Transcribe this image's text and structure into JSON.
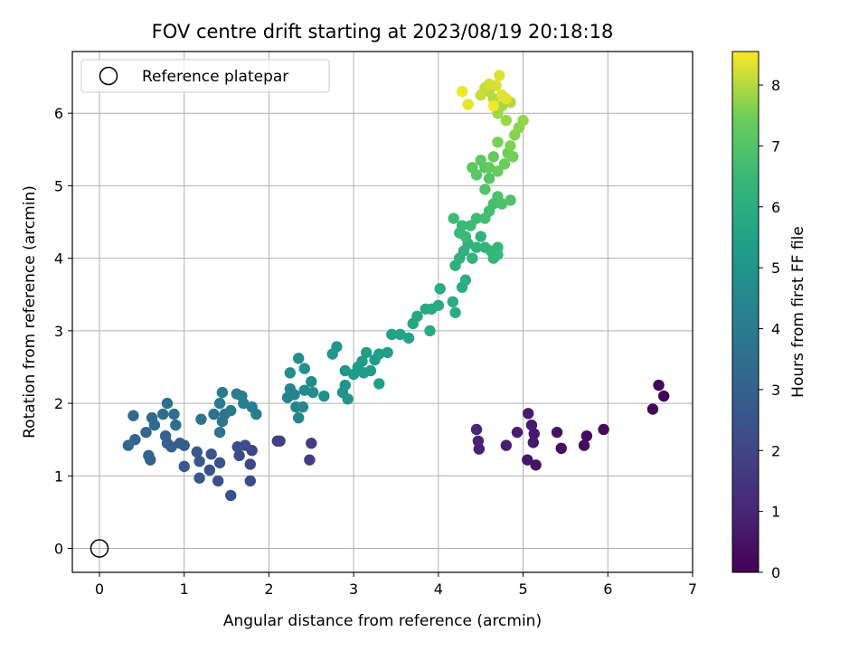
{
  "chart_data": {
    "type": "scatter",
    "title": "FOV centre drift starting at 2023/08/19 20:18:18",
    "xlabel": "Angular distance from reference (arcmin)",
    "ylabel": "Rotation from reference (arcmin)",
    "xlim": [
      -0.32,
      7.0
    ],
    "ylim": [
      -0.33,
      6.85
    ],
    "xticks": [
      0,
      1,
      2,
      3,
      4,
      5,
      6,
      7
    ],
    "yticks": [
      0,
      1,
      2,
      3,
      4,
      5,
      6
    ],
    "grid": true,
    "legend": {
      "label": "Reference platepar",
      "placement": "top-left"
    },
    "reference_point": {
      "x": 0,
      "y": 0
    },
    "colorbar": {
      "label": "Hours from first FF file",
      "range": [
        0,
        8.55
      ],
      "ticks": [
        0,
        1,
        2,
        3,
        4,
        5,
        6,
        7,
        8
      ],
      "colormap": "viridis"
    },
    "points": [
      [
        6.6,
        2.25,
        0.05
      ],
      [
        6.66,
        2.1,
        0.1
      ],
      [
        6.53,
        1.92,
        0.15
      ],
      [
        5.95,
        1.64,
        0.25
      ],
      [
        5.75,
        1.55,
        0.3
      ],
      [
        5.72,
        1.42,
        0.35
      ],
      [
        5.45,
        1.38,
        0.42
      ],
      [
        5.4,
        1.6,
        0.45
      ],
      [
        5.15,
        1.15,
        0.55
      ],
      [
        5.05,
        1.22,
        0.6
      ],
      [
        5.12,
        1.46,
        0.62
      ],
      [
        5.13,
        1.58,
        0.65
      ],
      [
        5.1,
        1.7,
        0.7
      ],
      [
        5.06,
        1.86,
        0.75
      ],
      [
        4.93,
        1.6,
        0.8
      ],
      [
        4.8,
        1.42,
        0.85
      ],
      [
        4.48,
        1.37,
        0.9
      ],
      [
        4.47,
        1.48,
        0.95
      ],
      [
        4.45,
        1.64,
        1.0
      ],
      [
        2.48,
        1.22,
        1.7
      ],
      [
        2.5,
        1.45,
        1.75
      ],
      [
        2.1,
        1.48,
        1.8
      ],
      [
        2.13,
        1.48,
        1.85
      ],
      [
        1.8,
        1.35,
        2.0
      ],
      [
        1.78,
        1.16,
        2.05
      ],
      [
        1.78,
        0.93,
        2.1
      ],
      [
        1.72,
        1.42,
        2.15
      ],
      [
        1.65,
        1.28,
        2.2
      ],
      [
        1.63,
        1.4,
        2.25
      ],
      [
        1.55,
        0.73,
        2.3
      ],
      [
        1.4,
        0.93,
        2.35
      ],
      [
        1.42,
        1.18,
        2.4
      ],
      [
        1.3,
        1.08,
        2.45
      ],
      [
        1.32,
        1.3,
        2.5
      ],
      [
        1.18,
        0.97,
        2.55
      ],
      [
        1.18,
        1.2,
        2.6
      ],
      [
        1.15,
        1.33,
        2.65
      ],
      [
        1.0,
        1.13,
        2.7
      ],
      [
        1.0,
        1.42,
        2.75
      ],
      [
        0.95,
        1.45,
        2.8
      ],
      [
        0.85,
        1.4,
        2.85
      ],
      [
        0.8,
        1.45,
        2.9
      ],
      [
        0.78,
        1.55,
        2.95
      ],
      [
        0.6,
        1.22,
        3.0
      ],
      [
        0.58,
        1.28,
        3.05
      ],
      [
        0.55,
        1.6,
        3.1
      ],
      [
        0.42,
        1.5,
        3.15
      ],
      [
        0.34,
        1.42,
        3.2
      ],
      [
        0.4,
        1.83,
        3.25
      ],
      [
        0.62,
        1.8,
        3.3
      ],
      [
        0.65,
        1.7,
        3.35
      ],
      [
        0.75,
        1.85,
        3.4
      ],
      [
        0.8,
        2.0,
        3.45
      ],
      [
        0.88,
        1.85,
        3.5
      ],
      [
        0.9,
        1.7,
        3.55
      ],
      [
        1.2,
        1.78,
        3.6
      ],
      [
        1.35,
        1.85,
        3.65
      ],
      [
        1.42,
        1.6,
        3.7
      ],
      [
        1.45,
        1.75,
        3.75
      ],
      [
        1.48,
        1.85,
        3.8
      ],
      [
        1.55,
        1.9,
        3.85
      ],
      [
        1.42,
        2.0,
        3.9
      ],
      [
        1.45,
        2.15,
        3.95
      ],
      [
        1.62,
        2.13,
        4.0
      ],
      [
        1.68,
        2.1,
        4.05
      ],
      [
        1.7,
        2.0,
        4.08
      ],
      [
        1.8,
        1.95,
        4.12
      ],
      [
        1.85,
        1.85,
        4.15
      ],
      [
        2.22,
        2.08,
        4.25
      ],
      [
        2.25,
        2.2,
        4.3
      ],
      [
        2.3,
        2.12,
        4.35
      ],
      [
        2.32,
        1.95,
        4.4
      ],
      [
        2.35,
        1.8,
        4.45
      ],
      [
        2.4,
        1.95,
        4.5
      ],
      [
        2.42,
        2.18,
        4.55
      ],
      [
        2.5,
        2.3,
        4.6
      ],
      [
        2.52,
        2.15,
        4.65
      ],
      [
        2.25,
        2.42,
        4.7
      ],
      [
        2.35,
        2.62,
        4.75
      ],
      [
        2.42,
        2.48,
        4.8
      ],
      [
        2.65,
        2.1,
        4.85
      ],
      [
        2.87,
        2.15,
        4.9
      ],
      [
        2.9,
        2.25,
        4.95
      ],
      [
        2.93,
        2.06,
        5.0
      ],
      [
        2.9,
        2.45,
        5.05
      ],
      [
        2.75,
        2.68,
        5.1
      ],
      [
        2.8,
        2.78,
        5.15
      ],
      [
        3.0,
        2.4,
        5.2
      ],
      [
        3.05,
        2.5,
        5.22
      ],
      [
        3.1,
        2.58,
        5.25
      ],
      [
        3.12,
        2.42,
        5.28
      ],
      [
        3.2,
        2.45,
        5.3
      ],
      [
        3.25,
        2.6,
        5.32
      ],
      [
        3.3,
        2.68,
        5.35
      ],
      [
        3.15,
        2.7,
        5.38
      ],
      [
        3.3,
        2.27,
        5.4
      ],
      [
        3.4,
        2.7,
        5.45
      ],
      [
        3.45,
        2.95,
        5.5
      ],
      [
        3.55,
        2.95,
        5.55
      ],
      [
        3.65,
        2.9,
        5.6
      ],
      [
        3.7,
        3.1,
        5.65
      ],
      [
        3.75,
        3.2,
        5.7
      ],
      [
        3.85,
        3.3,
        5.75
      ],
      [
        3.92,
        3.3,
        5.8
      ],
      [
        3.9,
        3.0,
        5.82
      ],
      [
        4.0,
        3.35,
        5.85
      ],
      [
        4.02,
        3.58,
        5.88
      ],
      [
        4.17,
        3.4,
        5.9
      ],
      [
        4.2,
        3.25,
        5.92
      ],
      [
        4.28,
        3.6,
        5.95
      ],
      [
        4.32,
        3.7,
        6.0
      ],
      [
        4.2,
        3.9,
        6.05
      ],
      [
        4.25,
        4.0,
        6.1
      ],
      [
        4.3,
        4.1,
        6.15
      ],
      [
        4.35,
        4.2,
        6.2
      ],
      [
        4.4,
        4.0,
        6.22
      ],
      [
        4.45,
        4.15,
        6.25
      ],
      [
        4.5,
        4.3,
        6.28
      ],
      [
        4.55,
        4.15,
        6.3
      ],
      [
        4.62,
        4.1,
        6.32
      ],
      [
        4.65,
        4.0,
        6.35
      ],
      [
        4.7,
        4.15,
        6.38
      ],
      [
        4.7,
        4.05,
        6.4
      ],
      [
        4.25,
        4.35,
        6.45
      ],
      [
        4.28,
        4.45,
        6.48
      ],
      [
        4.32,
        4.3,
        6.5
      ],
      [
        4.38,
        4.45,
        6.55
      ],
      [
        4.18,
        4.55,
        6.6
      ],
      [
        4.45,
        4.55,
        6.62
      ],
      [
        4.55,
        4.55,
        6.65
      ],
      [
        4.6,
        4.65,
        6.7
      ],
      [
        4.65,
        4.75,
        6.75
      ],
      [
        4.7,
        4.85,
        6.8
      ],
      [
        4.75,
        4.75,
        6.85
      ],
      [
        4.85,
        4.8,
        6.9
      ],
      [
        4.55,
        4.95,
        6.95
      ],
      [
        4.6,
        5.1,
        7.0
      ],
      [
        4.55,
        5.25,
        7.05
      ],
      [
        4.45,
        5.15,
        7.1
      ],
      [
        4.4,
        5.25,
        7.15
      ],
      [
        4.5,
        5.35,
        7.2
      ],
      [
        4.6,
        5.25,
        7.25
      ],
      [
        4.65,
        5.4,
        7.3
      ],
      [
        4.7,
        5.2,
        7.35
      ],
      [
        4.78,
        5.3,
        7.4
      ],
      [
        4.82,
        5.45,
        7.45
      ],
      [
        4.88,
        5.4,
        7.5
      ],
      [
        4.7,
        5.6,
        7.55
      ],
      [
        4.85,
        5.55,
        7.6
      ],
      [
        4.9,
        5.7,
        7.65
      ],
      [
        4.95,
        5.8,
        7.7
      ],
      [
        5.0,
        5.9,
        7.75
      ],
      [
        4.8,
        5.9,
        7.8
      ],
      [
        4.7,
        6.0,
        7.85
      ],
      [
        4.75,
        6.1,
        7.9
      ],
      [
        4.85,
        6.15,
        7.95
      ],
      [
        4.65,
        6.2,
        8.0
      ],
      [
        4.6,
        6.3,
        8.05
      ],
      [
        4.55,
        6.35,
        8.1
      ],
      [
        4.5,
        6.25,
        8.15
      ],
      [
        4.6,
        6.4,
        8.2
      ],
      [
        4.68,
        6.38,
        8.25
      ],
      [
        4.72,
        6.52,
        8.3
      ],
      [
        4.75,
        6.25,
        8.32
      ],
      [
        4.8,
        6.2,
        8.35
      ],
      [
        4.35,
        6.12,
        8.4
      ],
      [
        4.28,
        6.3,
        8.45
      ],
      [
        4.65,
        6.1,
        8.5
      ]
    ]
  }
}
